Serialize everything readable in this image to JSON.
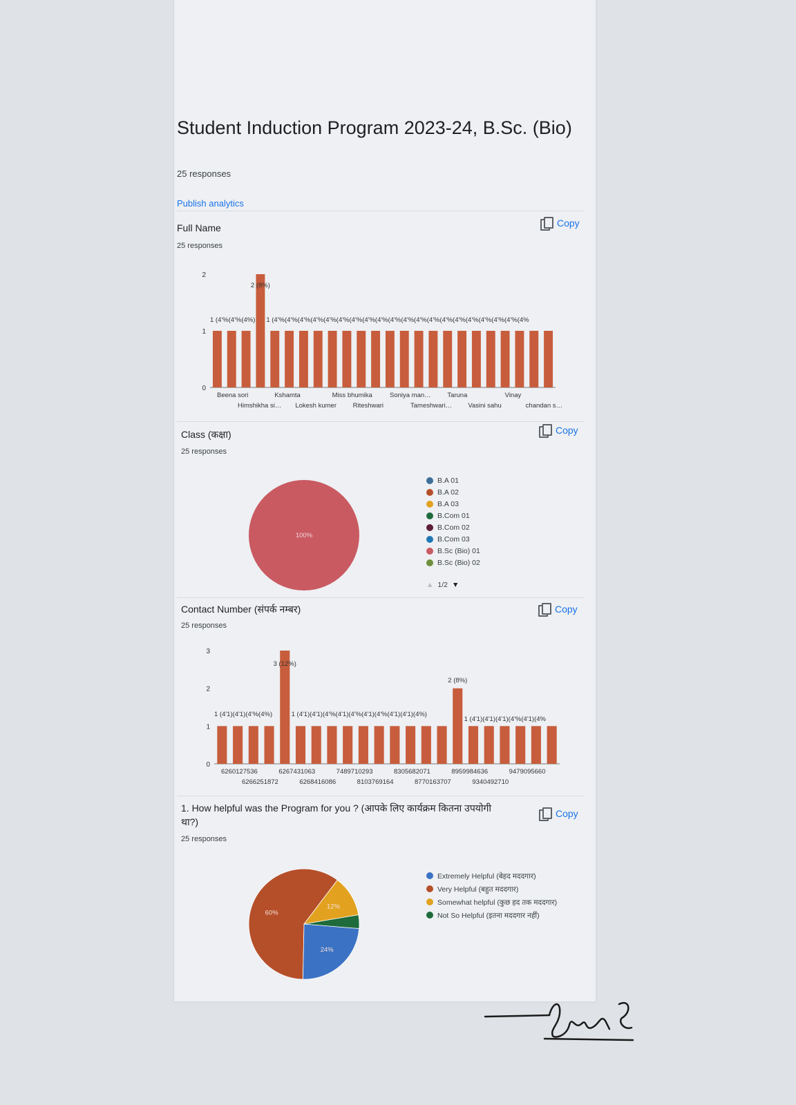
{
  "form": {
    "title": "Student Induction Program 2023-24, B.Sc. (Bio)",
    "responses": "25 responses",
    "publish_label": "Publish analytics"
  },
  "copy_label": "Copy",
  "colors": {
    "bar": "#c75d3c",
    "link": "#1a73e8",
    "pie_bsc": "#c95a62",
    "extremely": "#3b72c4",
    "very": "#b54f2a",
    "somewhat": "#e2a21f",
    "notso": "#1f6b3b"
  },
  "questions": {
    "full_name": {
      "title": "Full Name",
      "responses": "25 responses",
      "chart_data": {
        "type": "bar",
        "yticks": [
          "0",
          "1",
          "2"
        ],
        "ylim": [
          0,
          2
        ],
        "values": [
          1,
          1,
          1,
          2,
          1,
          1,
          1,
          1,
          1,
          1,
          1,
          1,
          1,
          1,
          1,
          1,
          1,
          1,
          1,
          1,
          1,
          1,
          1,
          1
        ],
        "peak_label": "2 (8%)",
        "left_label": "1 (4'%(4'%(4%)",
        "right_label": "1 (4'%(4'%(4'%(4'%(4'%(4'%(4'%(4'%(4'%(4'%(4'%(4'%(4'%(4'%(4'%(4'%(4'%(4'%(4'%(4%",
        "xticks_row1": [
          "Beena sori",
          "Kshamta",
          "Miss bhumika",
          "Soniya man…",
          "Taruna",
          "Vinay"
        ],
        "xticks_row2": [
          "Himshikha si…",
          "Lokesh kumer",
          "Riteshwari",
          "Tameshwari…",
          "Vasini sahu",
          "chandan s…"
        ]
      }
    },
    "class": {
      "title": "Class (कक्षा)",
      "responses": "25 responses",
      "chart_data": {
        "type": "pie",
        "slices": [
          {
            "label": "B.Sc (Bio) 01",
            "value": 100,
            "text": "100%"
          }
        ]
      },
      "legend": [
        {
          "label": "B.A 01",
          "color": "#3f6f98"
        },
        {
          "label": "B.A 02",
          "color": "#b54f2a"
        },
        {
          "label": "B.A 03",
          "color": "#e2a21f"
        },
        {
          "label": "B.Com 01",
          "color": "#1f6b3b"
        },
        {
          "label": "B.Com 02",
          "color": "#5e1f36"
        },
        {
          "label": "B.Com 03",
          "color": "#1f78b4"
        },
        {
          "label": "B.Sc (Bio) 01",
          "color": "#c95a62"
        },
        {
          "label": "B.Sc (Bio) 02",
          "color": "#6f8f3c"
        }
      ],
      "pager": "1/2"
    },
    "contact": {
      "title": "Contact Number (संपर्क नम्बर)",
      "responses": "25 responses",
      "chart_data": {
        "type": "bar",
        "yticks": [
          "0",
          "1",
          "2",
          "3"
        ],
        "ylim": [
          0,
          3
        ],
        "values": [
          1,
          1,
          1,
          1,
          3,
          1,
          1,
          1,
          1,
          1,
          1,
          1,
          1,
          1,
          1,
          2,
          1,
          1,
          1,
          1,
          1,
          1
        ],
        "peak_label_1": "3 (12%)",
        "peak_label_2": "2 (8%)",
        "left_label": "1 (4'1)(4'1)(4'%(4%)",
        "mid_label": "1 (4'1)(4'1)(4'%(4'1)(4'%(4'1)(4'%(4'1)(4'1)(4%)",
        "right_label": "1 (4'1)(4'1)(4'1)(4'%(4'1)(4%",
        "xticks_row1": [
          "6260127536",
          "6267431063",
          "7489710293",
          "8305682071",
          "8959984636",
          "9479095660"
        ],
        "xticks_row2": [
          "6266251872",
          "6268416086",
          "8103769164",
          "8770163707",
          "9340492710"
        ]
      }
    },
    "helpful": {
      "title": "1. How helpful was the Program for you ? (आपके लिए कार्यक्रम कितना उपयोगी था?)",
      "responses": "25 responses",
      "chart_data": {
        "type": "pie",
        "slices": [
          {
            "label": "Very Helpful (बहुत मददगार)",
            "value": 60,
            "text": "60%"
          },
          {
            "label": "Somewhat helpful (कुछ हद तक मददगार)",
            "value": 12,
            "text": "12%"
          },
          {
            "label": "Not So Helpful (इतना मददगार नहीं)",
            "value": 4,
            "text": ""
          },
          {
            "label": "Extremely Helpful (बेहद मददगार)",
            "value": 24,
            "text": "24%"
          }
        ]
      },
      "legend": [
        {
          "label": "Extremely Helpful (बेहद मददगार)",
          "color": "#3b72c4"
        },
        {
          "label": "Very Helpful (बहुत मददगार)",
          "color": "#b54f2a"
        },
        {
          "label": "Somewhat helpful (कुछ हद तक मददगार)",
          "color": "#e2a21f"
        },
        {
          "label": "Not So Helpful (इतना मददगार नहीं)",
          "color": "#1f6b3b"
        }
      ]
    }
  }
}
